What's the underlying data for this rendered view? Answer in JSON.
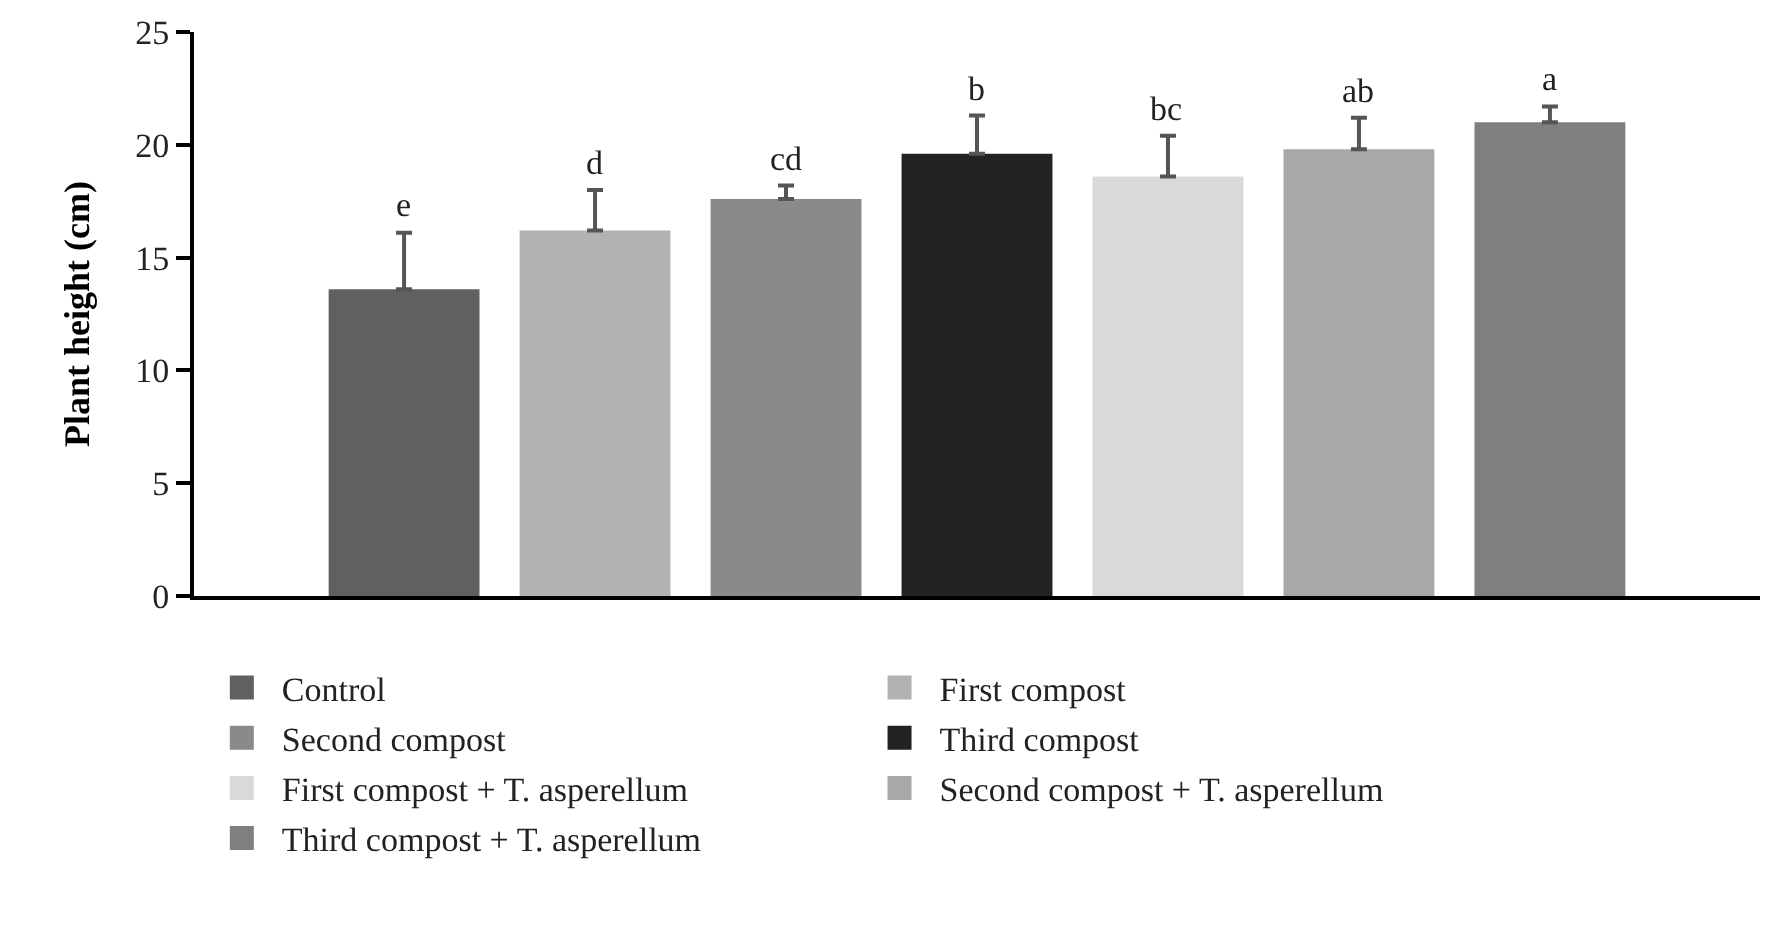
{
  "chart_data": {
    "type": "bar",
    "ylabel": "Plant height (cm)",
    "categories": [
      null,
      null,
      null,
      null,
      null,
      null,
      null
    ],
    "series": [
      {
        "name": "Control",
        "color": "#606060",
        "values": [
          13.6,
          null,
          null,
          null,
          null,
          null,
          null
        ],
        "errors": [
          2.5,
          null,
          null,
          null,
          null,
          null,
          null
        ],
        "value_labels": [
          "e",
          null,
          null,
          null,
          null,
          null,
          null
        ]
      },
      {
        "name": "First compost",
        "color": "#b2b2b2",
        "values": [
          null,
          16.2,
          null,
          null,
          null,
          null,
          null
        ],
        "errors": [
          null,
          1.8,
          null,
          null,
          null,
          null,
          null
        ],
        "value_labels": [
          null,
          "d",
          null,
          null,
          null,
          null,
          null
        ]
      },
      {
        "name": "Second compost",
        "color": "#8a8a8a",
        "values": [
          null,
          null,
          17.6,
          null,
          null,
          null,
          null
        ],
        "errors": [
          null,
          null,
          0.6,
          null,
          null,
          null,
          null
        ],
        "value_labels": [
          null,
          null,
          "cd",
          null,
          null,
          null,
          null
        ]
      },
      {
        "name": "Third compost",
        "color": "#222222",
        "values": [
          null,
          null,
          null,
          19.6,
          null,
          null,
          null
        ],
        "errors": [
          null,
          null,
          null,
          1.7,
          null,
          null,
          null
        ],
        "value_labels": [
          null,
          null,
          null,
          "b",
          null,
          null,
          null
        ]
      },
      {
        "name": "First compost + T. asperellum",
        "color": "#d9d9d9",
        "values": [
          null,
          null,
          null,
          null,
          18.6,
          null,
          null
        ],
        "errors": [
          null,
          null,
          null,
          null,
          1.8,
          null,
          null
        ],
        "value_labels": [
          null,
          null,
          null,
          null,
          "bc",
          null,
          null
        ]
      },
      {
        "name": "Second compost + T. asperellum",
        "color": "#a8a8a8",
        "values": [
          null,
          null,
          null,
          null,
          null,
          19.8,
          null
        ],
        "errors": [
          null,
          null,
          null,
          null,
          null,
          1.4,
          null
        ],
        "value_labels": [
          null,
          null,
          null,
          null,
          null,
          "ab",
          null
        ]
      },
      {
        "name": "Third compost + T. asperellum",
        "color": "#7f7f7f",
        "values": [
          null,
          null,
          null,
          null,
          null,
          null,
          21.0
        ],
        "errors": [
          null,
          null,
          null,
          null,
          null,
          null,
          0.7
        ],
        "value_labels": [
          null,
          null,
          null,
          null,
          null,
          null,
          "a"
        ]
      }
    ],
    "ylim": [
      0,
      25
    ],
    "yticks": [
      0,
      5,
      10,
      15,
      20,
      25
    ],
    "grid": false,
    "legend": "bottom",
    "tick_labels": "y"
  }
}
